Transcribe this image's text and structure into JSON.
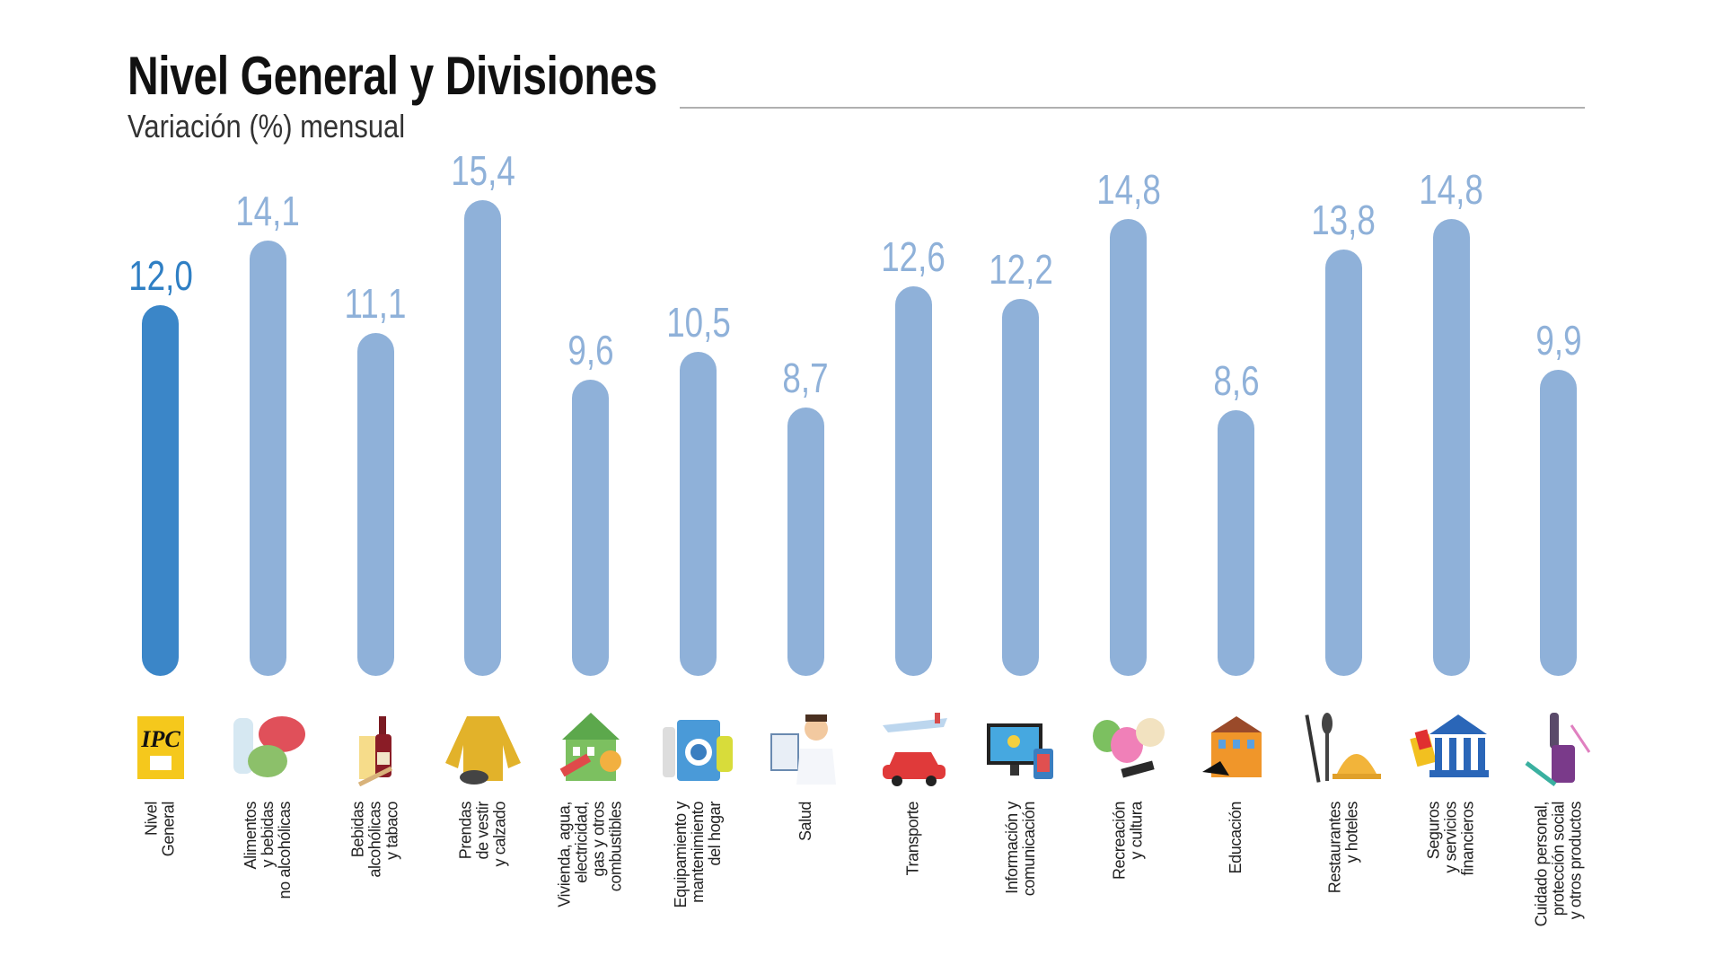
{
  "chart_data": {
    "type": "bar",
    "title": "Nivel General y Divisiones",
    "subtitle": "Variación (%) mensual",
    "categories": [
      [
        "Nivel",
        "General"
      ],
      [
        "Alimentos",
        "y bebidas",
        "no alcohólicas"
      ],
      [
        "Bebidas",
        "alcohólicas",
        "y tabaco"
      ],
      [
        "Prendas",
        "de vestir",
        "y calzado"
      ],
      [
        "Vivienda, agua,",
        "electricidad,",
        "gas y otros",
        "combustibles"
      ],
      [
        "Equipamiento y",
        "mantenimiento",
        "del hogar"
      ],
      [
        "Salud"
      ],
      [
        "Transporte"
      ],
      [
        "Información y",
        "comunicación"
      ],
      [
        "Recreación",
        "y cultura"
      ],
      [
        "Educación"
      ],
      [
        "Restaurantes",
        "y hoteles"
      ],
      [
        "Seguros",
        "y servicios",
        "financieros"
      ],
      [
        "Cuidado personal,",
        "protección social",
        "y otros productos"
      ]
    ],
    "values": [
      12.0,
      14.1,
      11.1,
      15.4,
      9.6,
      10.5,
      8.7,
      12.6,
      12.2,
      14.8,
      8.6,
      13.8,
      14.8,
      9.9
    ],
    "value_labels": [
      "12,0",
      "14,1",
      "11,1",
      "15,4",
      "9,6",
      "10,5",
      "8,7",
      "12,6",
      "12,2",
      "14,8",
      "8,6",
      "13,8",
      "14,8",
      "9,9"
    ],
    "icons": [
      "ipc-logo-icon",
      "food-icon",
      "wine-bottle-icon",
      "jacket-icon",
      "house-icon",
      "washing-machine-icon",
      "doctor-icon",
      "plane-car-icon",
      "monitor-icon",
      "theater-masks-icon",
      "school-building-icon",
      "restaurant-bell-icon",
      "bank-icon",
      "cosmetics-icon"
    ],
    "icon_text": {
      "ipc": "IPC"
    },
    "ylim": [
      0,
      15.4
    ],
    "grid": false,
    "colors": {
      "highlight": "#3b86c8",
      "bars": "#8fb1d9",
      "highlight_label": "#2f7fc4",
      "labels": "#8fb1d9"
    }
  }
}
